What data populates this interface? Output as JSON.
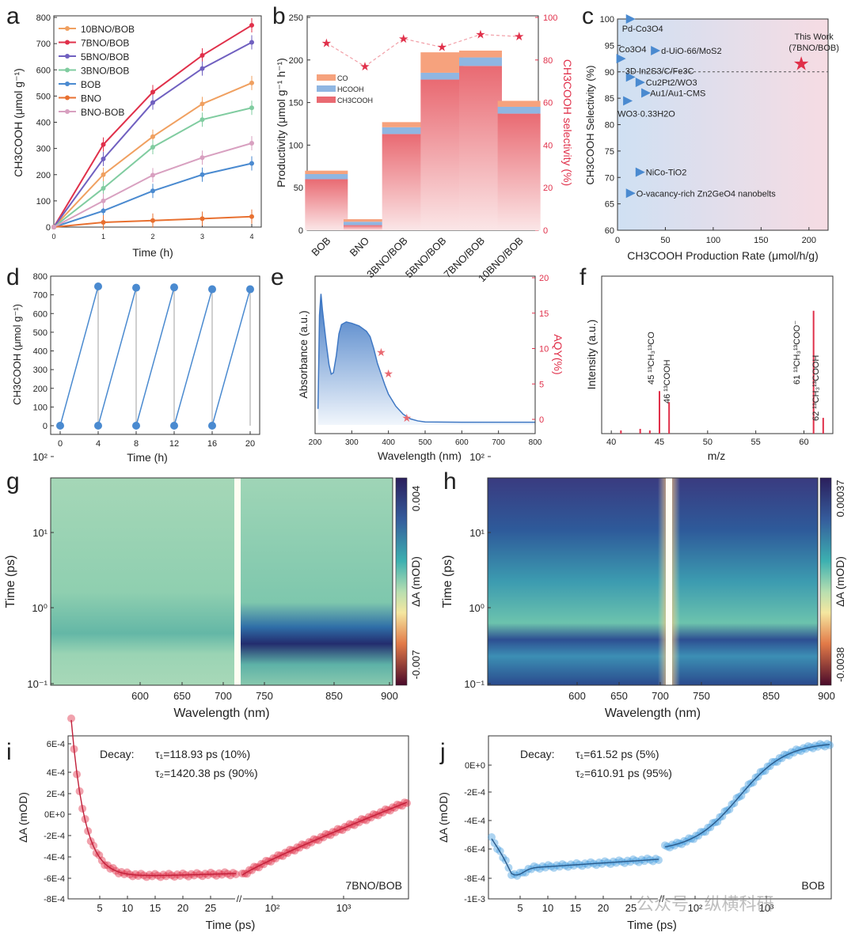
{
  "figure": {
    "watermark": "公众号 · 纵横科研"
  },
  "chart_data": [
    {
      "panel": "a",
      "type": "line",
      "xlabel": "Time (h)",
      "ylabel": "CH3COOH (μmol g⁻¹)",
      "x": [
        0,
        1,
        2,
        3,
        4
      ],
      "xlim": [
        0,
        4
      ],
      "ylim": [
        0,
        800
      ],
      "xticks": [
        0,
        1,
        2,
        3,
        4
      ],
      "yticks": [
        0,
        100,
        200,
        300,
        400,
        500,
        600,
        700,
        800
      ],
      "legend_position": "top-left",
      "series": [
        {
          "name": "10BNO/BOB",
          "color": "#f0a060",
          "values": [
            0,
            200,
            345,
            470,
            550
          ]
        },
        {
          "name": "7BNO/BOB",
          "color": "#e0304a",
          "values": [
            0,
            315,
            515,
            655,
            770
          ]
        },
        {
          "name": "5BNO/BOB",
          "color": "#7060c0",
          "values": [
            0,
            260,
            475,
            605,
            705
          ]
        },
        {
          "name": "3BNO/BOB",
          "color": "#80cca0",
          "values": [
            0,
            148,
            305,
            410,
            455
          ]
        },
        {
          "name": "BOB",
          "color": "#4a8ad0",
          "values": [
            0,
            62,
            138,
            200,
            243
          ]
        },
        {
          "name": "BNO",
          "color": "#e87030",
          "values": [
            0,
            18,
            25,
            32,
            40
          ]
        },
        {
          "name": "BNO-BOB",
          "color": "#d8a0c0",
          "values": [
            0,
            100,
            198,
            265,
            320
          ]
        }
      ]
    },
    {
      "panel": "b",
      "type": "bar",
      "ylabel": "Productivity (μmol g⁻¹ h⁻¹)",
      "y2label": "CH3COOH selectivity (%)",
      "categories": [
        "BOB",
        "BNO",
        "3BNO/BOB",
        "5BNO/BOB",
        "7BNO/BOB",
        "10BNO/BOB"
      ],
      "ylim": [
        0,
        250
      ],
      "y2lim": [
        0,
        100
      ],
      "yticks": [
        0,
        50,
        100,
        150,
        200,
        250
      ],
      "y2ticks": [
        0,
        20,
        40,
        60,
        80,
        100
      ],
      "legend": [
        "CO",
        "HCOOH",
        "CH3COOH"
      ],
      "series": [
        {
          "name": "CH3COOH",
          "values": [
            60,
            6,
            113,
            177,
            193,
            137
          ]
        },
        {
          "name": "HCOOH",
          "values": [
            6,
            4,
            8,
            8,
            10,
            8
          ]
        },
        {
          "name": "CO",
          "values": [
            4,
            3,
            6,
            24,
            8,
            7
          ]
        }
      ],
      "selectivity": [
        88,
        77,
        90,
        86,
        92,
        91
      ]
    },
    {
      "panel": "c",
      "type": "scatter",
      "xlabel": "CH3COOH Production Rate (μmol/h/g)",
      "ylabel": "CH3COOH Selectivity (%)",
      "xlim": [
        0,
        220
      ],
      "ylim": [
        60,
        100
      ],
      "xticks": [
        0,
        50,
        100,
        150,
        200
      ],
      "yticks": [
        60,
        65,
        70,
        75,
        80,
        85,
        90,
        95,
        100
      ],
      "reference_line": 90,
      "highlight": {
        "label": "This Work",
        "label2": "(7BNO/BOB)",
        "x": 192,
        "y": 91.5
      },
      "points": [
        {
          "name": "Pd-Co3O4",
          "x": 13,
          "y": 100
        },
        {
          "name": "Co3O4",
          "x": 3,
          "y": 92.5
        },
        {
          "name": "d-UiO-66/MoS2",
          "x": 39,
          "y": 94
        },
        {
          "name": "3D In2S3/C/Fe3C",
          "x": 13,
          "y": 89
        },
        {
          "name": "Cu2Pt2/WO3",
          "x": 23,
          "y": 88
        },
        {
          "name": "Au1/Au1-CMS",
          "x": 29,
          "y": 86
        },
        {
          "name": "WO3·0.33H2O",
          "x": 10,
          "y": 84.5
        },
        {
          "name": "NiCo-TiO2",
          "x": 23,
          "y": 71
        },
        {
          "name": "O-vacancy-rich Zn2GeO4 nanobelts",
          "x": 13,
          "y": 67
        }
      ]
    },
    {
      "panel": "d",
      "type": "line",
      "xlabel": "Time (h)",
      "ylabel": "CH3COOH (μmol g⁻¹)",
      "xlim": [
        -1,
        21
      ],
      "ylim": [
        0,
        800
      ],
      "xticks": [
        0,
        4,
        8,
        12,
        16,
        20
      ],
      "yticks": [
        0,
        100,
        200,
        300,
        400,
        500,
        600,
        700,
        800
      ],
      "cycle_end_values": [
        745,
        738,
        740,
        730,
        730
      ]
    },
    {
      "panel": "e",
      "type": "area",
      "xlabel": "Wavelength (nm)",
      "ylabel": "Absorbance (a.u.)",
      "y2label": "AQY(%)",
      "xlim": [
        200,
        800
      ],
      "y2lim": [
        0,
        20
      ],
      "xticks": [
        200,
        300,
        400,
        500,
        600,
        700,
        800
      ],
      "y2ticks": [
        0,
        5,
        10,
        15,
        20
      ],
      "absorbance": [
        [
          208,
          0.12
        ],
        [
          212,
          0.82
        ],
        [
          216,
          0.98
        ],
        [
          220,
          0.86
        ],
        [
          230,
          0.62
        ],
        [
          238,
          0.45
        ],
        [
          244,
          0.38
        ],
        [
          250,
          0.39
        ],
        [
          258,
          0.52
        ],
        [
          265,
          0.68
        ],
        [
          272,
          0.75
        ],
        [
          285,
          0.77
        ],
        [
          300,
          0.76
        ],
        [
          320,
          0.74
        ],
        [
          340,
          0.7
        ],
        [
          350,
          0.66
        ],
        [
          360,
          0.57
        ],
        [
          370,
          0.46
        ],
        [
          380,
          0.38
        ],
        [
          390,
          0.3
        ],
        [
          400,
          0.23
        ],
        [
          420,
          0.14
        ],
        [
          440,
          0.08
        ],
        [
          460,
          0.045
        ],
        [
          480,
          0.03
        ],
        [
          500,
          0.022
        ],
        [
          600,
          0.02
        ],
        [
          800,
          0.02
        ]
      ],
      "aqy": [
        {
          "x": 380,
          "y": 9.5
        },
        {
          "x": 400,
          "y": 6.5
        },
        {
          "x": 450,
          "y": 0.2
        }
      ]
    },
    {
      "panel": "f",
      "type": "bar",
      "xlabel": "m/z",
      "ylabel": "Intensity (a.u.)",
      "xlim": [
        39,
        63
      ],
      "xticks": [
        40,
        45,
        50,
        55,
        60
      ],
      "peaks": [
        {
          "x": 45,
          "h": 0.27
        },
        {
          "x": 46,
          "h": 0.2
        },
        {
          "x": 61,
          "h": 0.78
        },
        {
          "x": 62,
          "h": 0.1
        },
        {
          "x": 41,
          "h": 0.02
        },
        {
          "x": 43,
          "h": 0.03
        },
        {
          "x": 44,
          "h": 0.02
        }
      ],
      "peak_labels": [
        "45 ¹³CH₃¹³CO",
        "46 ¹³COOH",
        "61 ¹³CH₃¹³COO⁻",
        "62 ¹³CH₃¹³COOH"
      ]
    },
    {
      "panel": "g",
      "type": "heatmap",
      "xlabel": "Wavelength (nm)",
      "ylabel": "Time (ps)",
      "colorbar_label": "ΔA (mOD)",
      "xticks": [
        600,
        650,
        700,
        750,
        850,
        900
      ],
      "yticks": [
        "10⁻¹",
        "10⁰",
        "10¹",
        "10²"
      ],
      "colorbar_max": "0.004",
      "colorbar_min": "-0.007"
    },
    {
      "panel": "h",
      "type": "heatmap",
      "xlabel": "Wavelength (nm)",
      "ylabel": "Time (ps)",
      "colorbar_label": "ΔA (mOD)",
      "xticks": [
        600,
        650,
        700,
        750,
        850,
        900
      ],
      "yticks": [
        "10⁻¹",
        "10⁰",
        "10¹",
        "10²"
      ],
      "colorbar_max": "0.00037",
      "colorbar_min": "-0.0038"
    },
    {
      "panel": "i",
      "type": "scatter",
      "xlabel": "Time (ps)",
      "ylabel": "ΔA (mOD)",
      "yticks": [
        "-8E-4",
        "-6E-4",
        "-4E-4",
        "-2E-4",
        "0E+0",
        "2E-4",
        "4E-4",
        "6E-4"
      ],
      "xticks": [
        "5",
        "10",
        "15",
        "20",
        "25",
        "10²",
        "10³"
      ],
      "decay_label": "Decay:",
      "tau1": "τ₁=118.93 ps (10%)",
      "tau2": "τ₂=1420.38 ps (90%)",
      "sample": "7BNO/BOB"
    },
    {
      "panel": "j",
      "type": "scatter",
      "xlabel": "Time (ps)",
      "ylabel": "ΔA (mOD)",
      "yticks": [
        "-1E-3",
        "-8E-4",
        "-6E-4",
        "-4E-4",
        "-2E-4",
        "0E+0"
      ],
      "xticks": [
        "5",
        "10",
        "15",
        "20",
        "25",
        "10²",
        "10³"
      ],
      "decay_label": "Decay:",
      "tau1": "τ₁=61.52 ps (5%)",
      "tau2": "τ₂=610.91 ps (95%)",
      "sample": "BOB"
    }
  ]
}
